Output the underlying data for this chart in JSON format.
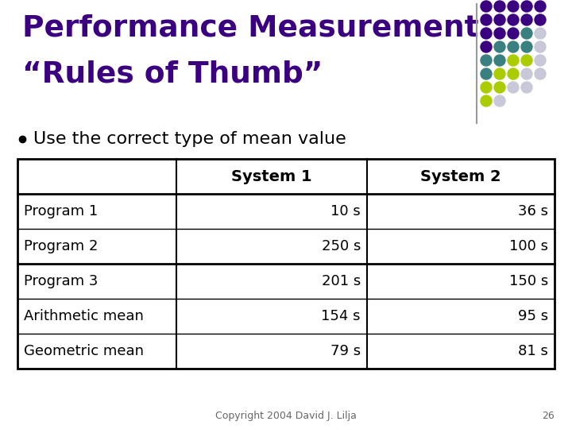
{
  "title_line1": "Performance Measurement",
  "title_line2": "“Rules of Thumb”",
  "title_color": "#3B0080",
  "bullet_text": "Use the correct type of mean value",
  "table_headers": [
    "",
    "System 1",
    "System 2"
  ],
  "table_rows": [
    [
      "Program 1",
      "10 s",
      "36 s"
    ],
    [
      "Program 2",
      "250 s",
      "100 s"
    ],
    [
      "Program 3",
      "201 s",
      "150 s"
    ],
    [
      "Arithmetic mean",
      "154 s",
      "95 s"
    ],
    [
      "Geometric mean",
      "79 s",
      "81 s"
    ]
  ],
  "copyright_text": "Copyright 2004 David J. Lilja",
  "page_number": "26",
  "bg_color": "#FFFFFF",
  "table_border_color": "#000000",
  "thick_line_after_row": 3,
  "dot_grid": [
    [
      "#3B0080",
      "#3B0080",
      "#3B0080",
      "#3B0080",
      "#3B0080"
    ],
    [
      "#3B0080",
      "#3B0080",
      "#3B0080",
      "#3B0080",
      "#3B0080"
    ],
    [
      "#3B0080",
      "#3B0080",
      "#3B0080",
      "#3B8080",
      "#C8C8D8"
    ],
    [
      "#3B0080",
      "#3B8080",
      "#3B8080",
      "#3B8080",
      "#C8C8D8"
    ],
    [
      "#3B8080",
      "#3B8080",
      "#AACC00",
      "#AACC00",
      "#C8C8D8"
    ],
    [
      "#3B8080",
      "#AACC00",
      "#AACC00",
      "#C8C8D8",
      "#C8C8D8"
    ],
    [
      "#AACC00",
      "#AACC00",
      "#C8C8D8",
      "#C8C8D8",
      "none"
    ],
    [
      "#AACC00",
      "#C8C8D8",
      "none",
      "none",
      "none"
    ]
  ]
}
